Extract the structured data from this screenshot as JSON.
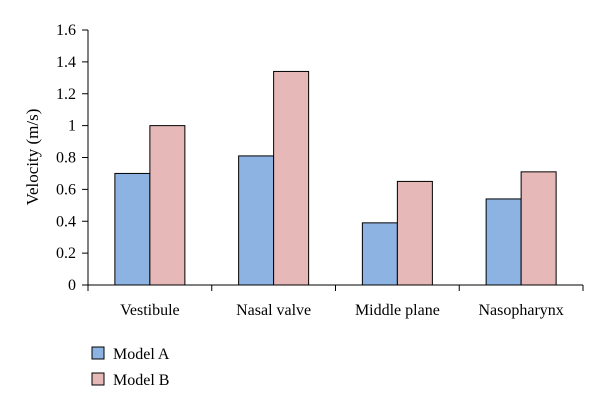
{
  "chart_data": {
    "type": "bar",
    "title": "",
    "xlabel": "",
    "ylabel": "Velocity (m/s)",
    "ylim": [
      0,
      1.6
    ],
    "yticks": [
      "0",
      "0.2",
      "0.4",
      "0.6",
      "0.8",
      "1",
      "1.2",
      "1.4",
      "1.6"
    ],
    "categories": [
      "Vestibule",
      "Nasal valve",
      "Middle plane",
      "Nasopharynx"
    ],
    "series": [
      {
        "name": "Model A",
        "values": [
          0.7,
          0.81,
          0.39,
          0.54
        ]
      },
      {
        "name": "Model B",
        "values": [
          1.0,
          1.34,
          0.65,
          0.71
        ]
      }
    ],
    "grid": false,
    "legend_position": "bottom-left"
  },
  "colors": {
    "model_a": "#8db3e2",
    "model_b": "#e6b9b8",
    "edge": "#000000"
  }
}
